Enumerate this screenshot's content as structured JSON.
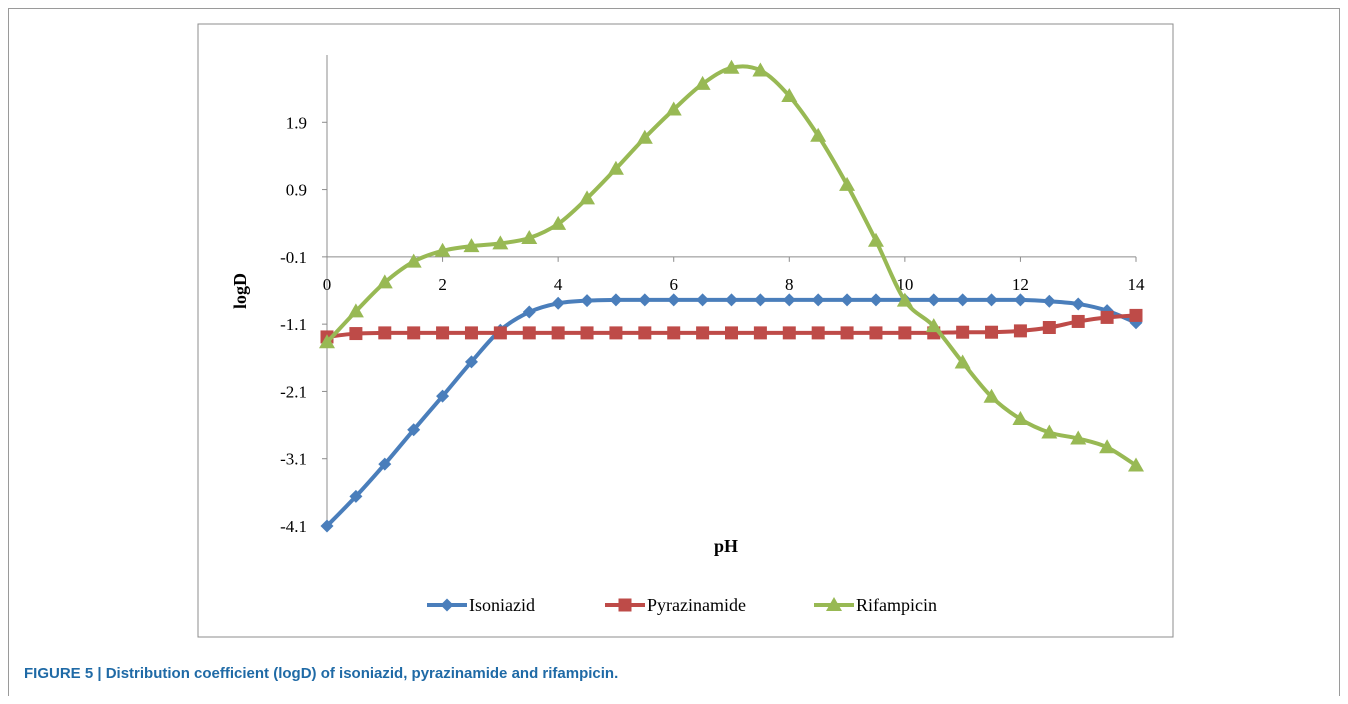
{
  "caption": "FIGURE 5 | Distribution coefficient (logD) of isoniazid, pyrazinamide and rifampicin.",
  "chart_data": {
    "type": "line",
    "xlabel": "pH",
    "ylabel": "logD",
    "xlim": [
      0,
      14
    ],
    "ylim": [
      -4.1,
      2.9
    ],
    "x_ticks": [
      0,
      2,
      4,
      6,
      8,
      10,
      12,
      14
    ],
    "y_ticks": [
      -4.1,
      -3.1,
      -2.1,
      -1.1,
      -0.1,
      0.9,
      1.9
    ],
    "x_tick_labels": [
      "0",
      "2",
      "4",
      "6",
      "8",
      "10",
      "12",
      "14"
    ],
    "y_tick_labels": [
      "-4.1",
      "-3.1",
      "-2.1",
      "-1.1",
      "-0.1",
      "0.9",
      "1.9"
    ],
    "x_axis_crosses_y_at": -0.1,
    "grid": false,
    "legend_position": "bottom",
    "x": [
      0,
      0.5,
      1,
      1.5,
      2,
      2.5,
      3,
      3.5,
      4,
      4.5,
      5,
      5.5,
      6,
      6.5,
      7,
      7.5,
      8,
      8.5,
      9,
      9.5,
      10,
      10.5,
      11,
      11.5,
      12,
      12.5,
      13,
      13.5,
      14
    ],
    "series": [
      {
        "name": "Isoniazid",
        "color": "#4a7ebb",
        "marker": "diamond",
        "values": [
          -4.1,
          -3.66,
          -3.18,
          -2.67,
          -2.17,
          -1.66,
          -1.19,
          -0.92,
          -0.79,
          -0.75,
          -0.74,
          -0.74,
          -0.74,
          -0.74,
          -0.74,
          -0.74,
          -0.74,
          -0.74,
          -0.74,
          -0.74,
          -0.74,
          -0.74,
          -0.74,
          -0.74,
          -0.74,
          -0.76,
          -0.8,
          -0.9,
          -1.08
        ]
      },
      {
        "name": "Pyrazinamide",
        "color": "#be4b48",
        "marker": "square",
        "values": [
          -1.29,
          -1.24,
          -1.23,
          -1.23,
          -1.23,
          -1.23,
          -1.23,
          -1.23,
          -1.23,
          -1.23,
          -1.23,
          -1.23,
          -1.23,
          -1.23,
          -1.23,
          -1.23,
          -1.23,
          -1.23,
          -1.23,
          -1.23,
          -1.23,
          -1.23,
          -1.22,
          -1.22,
          -1.2,
          -1.15,
          -1.06,
          -1.0,
          -0.97
        ]
      },
      {
        "name": "Rifampicin",
        "color": "#98b954",
        "marker": "triangle",
        "values": [
          -1.37,
          -0.91,
          -0.48,
          -0.17,
          -0.01,
          0.06,
          0.1,
          0.18,
          0.39,
          0.77,
          1.21,
          1.67,
          2.09,
          2.47,
          2.71,
          2.67,
          2.29,
          1.7,
          0.97,
          0.14,
          -0.75,
          -1.13,
          -1.67,
          -2.18,
          -2.51,
          -2.71,
          -2.8,
          -2.93,
          -3.2
        ]
      }
    ]
  }
}
